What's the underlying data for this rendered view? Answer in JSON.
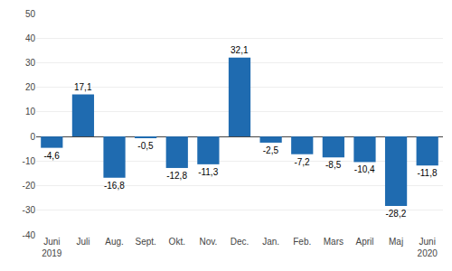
{
  "chart_data": {
    "type": "bar",
    "categories": [
      "Juni\n2019",
      "Juli",
      "Aug.",
      "Sept.",
      "Okt.",
      "Nov.",
      "Dec.",
      "Jan.",
      "Feb.",
      "Mars",
      "April",
      "Maj",
      "Juni\n2020"
    ],
    "values": [
      -4.6,
      17.1,
      -16.8,
      -0.5,
      -12.8,
      -11.3,
      32.1,
      -2.5,
      -7.2,
      -8.5,
      -10.4,
      -28.2,
      -11.8
    ],
    "value_labels": [
      "-4,6",
      "17,1",
      "-16,8",
      "-0,5",
      "-12,8",
      "-11,3",
      "32,1",
      "-2,5",
      "-7,2",
      "-8,5",
      "-10,4",
      "-28,2",
      "-11,8"
    ],
    "color": "#1F6BB0",
    "ylim": [
      -40,
      50
    ],
    "yticks": [
      -40,
      -30,
      -20,
      -10,
      0,
      10,
      20,
      30,
      40,
      50
    ],
    "grid": true,
    "data_labels": true
  }
}
